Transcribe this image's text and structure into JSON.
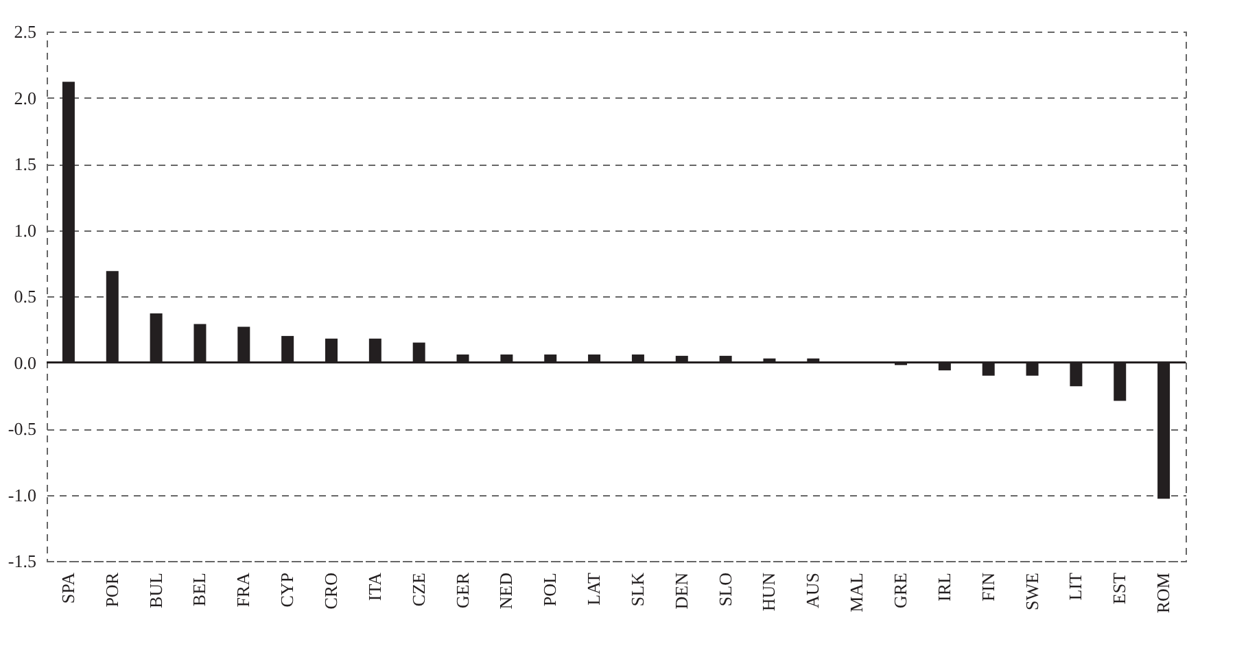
{
  "chart_data": {
    "type": "bar",
    "categories": [
      "SPA",
      "POR",
      "BUL",
      "BEL",
      "FRA",
      "CYP",
      "CRO",
      "ITA",
      "CZE",
      "GER",
      "NED",
      "POL",
      "LAT",
      "SLK",
      "DEN",
      "SLO",
      "HUN",
      "AUS",
      "MAL",
      "GRE",
      "IRL",
      "FIN",
      "SWE",
      "LIT",
      "EST",
      "ROM"
    ],
    "values": [
      2.12,
      0.69,
      0.37,
      0.29,
      0.27,
      0.2,
      0.18,
      0.18,
      0.15,
      0.06,
      0.06,
      0.06,
      0.06,
      0.06,
      0.05,
      0.05,
      0.03,
      0.03,
      0,
      -0.02,
      -0.06,
      -0.1,
      -0.1,
      -0.18,
      -0.29,
      -1.03
    ],
    "color": "#231f20",
    "ylim": [
      -1.5,
      2.5
    ],
    "yticks": [
      {
        "value": -1.5,
        "label": "-1.5"
      },
      {
        "value": -1,
        "label": "-1.0"
      },
      {
        "value": -0.5,
        "label": "-0.5"
      },
      {
        "value": 0,
        "label": "0.0"
      },
      {
        "value": 0.5,
        "label": "0.5"
      },
      {
        "value": 1,
        "label": "1.0"
      },
      {
        "value": 1.5,
        "label": "1.5"
      },
      {
        "value": 2,
        "label": "2.0"
      },
      {
        "value": 2.5,
        "label": "2.5"
      }
    ],
    "grid": "y"
  }
}
